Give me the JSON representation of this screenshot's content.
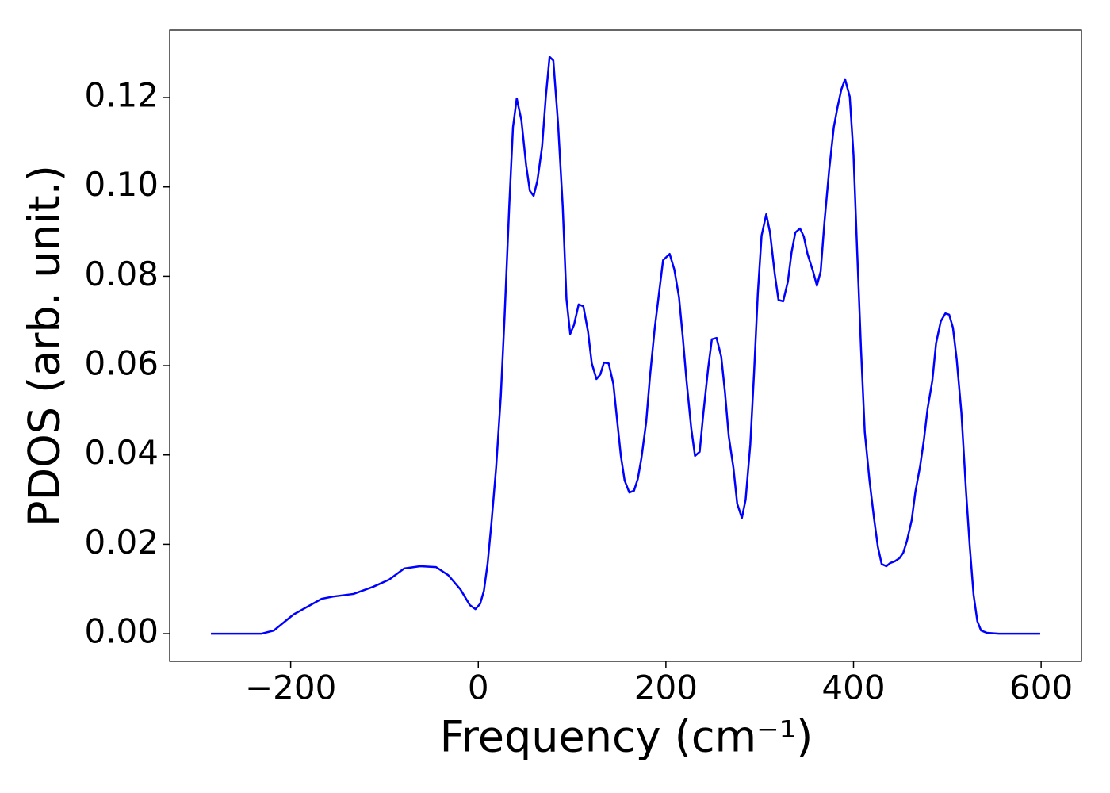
{
  "chart_data": {
    "type": "line",
    "xlabel": "Frequency (cm⁻¹)",
    "ylabel": "PDOS (arb. unit.)",
    "xlim": [
      -329,
      643
    ],
    "ylim": [
      -0.0062,
      0.1351
    ],
    "xticks": [
      {
        "value": -200,
        "label": "−200"
      },
      0,
      200,
      400,
      600
    ],
    "yticks": [
      {
        "value": 0,
        "label": "0.00"
      },
      {
        "value": 0.02,
        "label": "0.02"
      },
      {
        "value": 0.04,
        "label": "0.04"
      },
      {
        "value": 0.06,
        "label": "0.06"
      },
      {
        "value": 0.08,
        "label": "0.08"
      },
      {
        "value": 0.1,
        "label": "0.10"
      },
      {
        "value": 0.12,
        "label": "0.12"
      }
    ],
    "grid": false,
    "series": [
      {
        "color": "#0000ff",
        "x": [
          -285,
          -231,
          -218,
          -197,
          -167,
          -155,
          -133,
          -112,
          -95,
          -79,
          -62,
          -45,
          -32,
          -19,
          -9,
          -3,
          2,
          6,
          10,
          14,
          19,
          24,
          28,
          33,
          37,
          41,
          46,
          51,
          55,
          59,
          63,
          68,
          72,
          76,
          80,
          85,
          90,
          94,
          98,
          102,
          107,
          112,
          117,
          121,
          126,
          130,
          134,
          139,
          144,
          148,
          152,
          156,
          161,
          166,
          170,
          174,
          179,
          183,
          188,
          197,
          204,
          209,
          214,
          218,
          222,
          227,
          231,
          236,
          240,
          245,
          249,
          254,
          259,
          263,
          267,
          272,
          276,
          281,
          285,
          290,
          294,
          298,
          302,
          307,
          311,
          316,
          320,
          325,
          330,
          334,
          338,
          343,
          347,
          351,
          357,
          361,
          365,
          369,
          374,
          379,
          383,
          387,
          391,
          396,
          400,
          404,
          408,
          412,
          417,
          422,
          426,
          430,
          435,
          439,
          444,
          449,
          453,
          457,
          462,
          466,
          471,
          475,
          479,
          484,
          488,
          493,
          498,
          502,
          506,
          510,
          515,
          520,
          524,
          528,
          532,
          536,
          542,
          555,
          599
        ],
        "values": [
          0,
          0,
          0.0007,
          0.0043,
          0.0078,
          0.0083,
          0.0089,
          0.0105,
          0.0121,
          0.0146,
          0.0151,
          0.0149,
          0.0131,
          0.0099,
          0.0064,
          0.0055,
          0.0067,
          0.0096,
          0.0158,
          0.0247,
          0.0371,
          0.0531,
          0.0708,
          0.0957,
          0.1134,
          0.1198,
          0.1149,
          0.1049,
          0.0991,
          0.098,
          0.1014,
          0.109,
          0.1202,
          0.1291,
          0.1283,
          0.1143,
          0.0957,
          0.0749,
          0.0671,
          0.0691,
          0.0737,
          0.0733,
          0.0676,
          0.0605,
          0.057,
          0.058,
          0.0607,
          0.0605,
          0.0559,
          0.0478,
          0.0398,
          0.0343,
          0.0316,
          0.032,
          0.0346,
          0.0394,
          0.0474,
          0.0575,
          0.0682,
          0.0836,
          0.085,
          0.0815,
          0.0753,
          0.0664,
          0.0566,
          0.046,
          0.0398,
          0.0407,
          0.0495,
          0.0593,
          0.0659,
          0.0662,
          0.062,
          0.054,
          0.0442,
          0.0371,
          0.0291,
          0.0259,
          0.03,
          0.0424,
          0.0584,
          0.0762,
          0.0891,
          0.0939,
          0.0898,
          0.0806,
          0.0747,
          0.0744,
          0.0788,
          0.0854,
          0.0898,
          0.0907,
          0.0889,
          0.085,
          0.081,
          0.0779,
          0.0811,
          0.0921,
          0.1037,
          0.1134,
          0.1179,
          0.1218,
          0.1241,
          0.1202,
          0.1072,
          0.085,
          0.0637,
          0.0451,
          0.0344,
          0.0256,
          0.0194,
          0.0156,
          0.0151,
          0.0158,
          0.0162,
          0.0169,
          0.0181,
          0.0208,
          0.0254,
          0.0318,
          0.0375,
          0.0433,
          0.0504,
          0.0566,
          0.065,
          0.0699,
          0.0717,
          0.0714,
          0.0685,
          0.0614,
          0.0495,
          0.0318,
          0.0194,
          0.0087,
          0.0028,
          0.0007,
          0.0002,
          0,
          0
        ]
      }
    ]
  }
}
